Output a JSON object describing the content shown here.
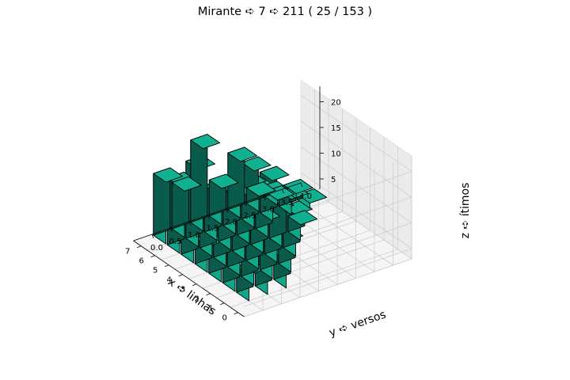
{
  "chart_data": {
    "type": "bar3d",
    "title": "Mirante ➪ 7 ➪ 211 ( 25 / 153 )",
    "xlabel": "x ➪ linhas",
    "ylabel": "y ➪ versos",
    "zlabel": "z ➪ ítimos",
    "xticks": [
      "0",
      "1",
      "2",
      "3",
      "4",
      "5",
      "6",
      "7"
    ],
    "yticks": [
      "0.0",
      "0.5",
      "1.0",
      "1.5",
      "2.0",
      "2.5",
      "3.0",
      "3.5",
      "4.0"
    ],
    "zticks": [
      "5",
      "10",
      "15",
      "20"
    ],
    "xlim": [
      0,
      7
    ],
    "ylim": [
      0,
      4
    ],
    "zlim": [
      3,
      23
    ],
    "bar_color": "#10a88a",
    "bars": [
      {
        "x": 1,
        "y": 0.0,
        "z": 8
      },
      {
        "x": 1,
        "y": 0.5,
        "z": 10
      },
      {
        "x": 1,
        "y": 1.0,
        "z": 12
      },
      {
        "x": 2,
        "y": 0.0,
        "z": 18
      },
      {
        "x": 2,
        "y": 0.5,
        "z": 16
      },
      {
        "x": 2,
        "y": 1.0,
        "z": 22
      },
      {
        "x": 2,
        "y": 1.5,
        "z": 12
      },
      {
        "x": 3,
        "y": 0.0,
        "z": 15
      },
      {
        "x": 3,
        "y": 0.5,
        "z": 15
      },
      {
        "x": 3,
        "y": 1.0,
        "z": 18
      },
      {
        "x": 3,
        "y": 1.5,
        "z": 13
      },
      {
        "x": 3,
        "y": 2.0,
        "z": 11
      },
      {
        "x": 4,
        "y": 0.0,
        "z": 8
      },
      {
        "x": 4,
        "y": 0.5,
        "z": 16
      },
      {
        "x": 4,
        "y": 1.0,
        "z": 12
      },
      {
        "x": 4,
        "y": 1.5,
        "z": 9
      },
      {
        "x": 4,
        "y": 2.0,
        "z": 11
      },
      {
        "x": 4,
        "y": 2.5,
        "z": 6
      },
      {
        "x": 5,
        "y": 0.0,
        "z": 16
      },
      {
        "x": 5,
        "y": 0.5,
        "z": 12
      },
      {
        "x": 5,
        "y": 1.0,
        "z": 15
      },
      {
        "x": 5,
        "y": 1.5,
        "z": 14
      },
      {
        "x": 5,
        "y": 2.0,
        "z": 10
      },
      {
        "x": 6,
        "y": 0.0,
        "z": 16
      },
      {
        "x": 6,
        "y": 0.5,
        "z": 18
      },
      {
        "x": 6,
        "y": 1.0,
        "z": 12
      },
      {
        "x": 6,
        "y": 1.5,
        "z": 10
      },
      {
        "x": 6,
        "y": 2.0,
        "z": 14
      },
      {
        "x": 6,
        "y": 2.5,
        "z": 8
      },
      {
        "x": 6,
        "y": 3.0,
        "z": 6
      },
      {
        "x": 6,
        "y": 3.5,
        "z": 4
      },
      {
        "x": 7,
        "y": 0.0,
        "z": 15
      },
      {
        "x": 7,
        "y": 0.5,
        "z": 12
      },
      {
        "x": 7,
        "y": 1.0,
        "z": 19
      },
      {
        "x": 7,
        "y": 1.5,
        "z": 10
      },
      {
        "x": 7,
        "y": 2.0,
        "z": 14
      },
      {
        "x": 7,
        "y": 2.5,
        "z": 6
      },
      {
        "x": 7,
        "y": 3.0,
        "z": 4
      },
      {
        "x": 7,
        "y": 3.5,
        "z": 4
      }
    ]
  }
}
